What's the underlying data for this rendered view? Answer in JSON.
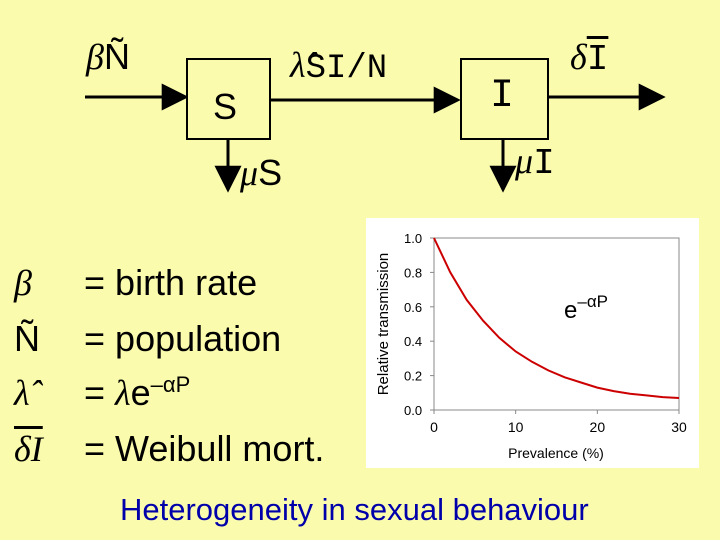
{
  "flow": {
    "birth_symbol": "β",
    "birth_var": "Ñ",
    "box_s": "S",
    "infection_symbol": "λ̂",
    "infection_expr": "SI/N",
    "box_i": "I",
    "disease_death_symbol": "δ",
    "disease_death_var": "I",
    "death_s_symbol": "μ",
    "death_s_var": "S",
    "death_i_symbol": "μ",
    "death_i_var": "I"
  },
  "legend": {
    "rows": [
      {
        "symbol": "β",
        "equals": "=",
        "text": "birth rate"
      },
      {
        "symbol": "Ñ",
        "equals": "=",
        "text": "population"
      },
      {
        "symbol": "λ̂",
        "equals": "=",
        "text_lambda": "λ",
        "text_e": "e",
        "text_sup": "–αP"
      },
      {
        "symbol": "δI",
        "equals": "=",
        "text": "Weibull mort."
      }
    ]
  },
  "chart_data": {
    "type": "line",
    "xlabel": "Prevalence (%)",
    "ylabel": "Relative transmission",
    "xlim": [
      0,
      30
    ],
    "ylim": [
      0,
      1
    ],
    "x_ticks": [
      "0",
      "10",
      "20",
      "30"
    ],
    "y_ticks": [
      "0.0",
      "0.2",
      "0.4",
      "0.6",
      "0.8",
      "1.0"
    ],
    "annotation": {
      "base": "e",
      "sup": "–αP"
    },
    "series": [
      {
        "x": [
          0,
          2,
          4,
          6,
          8,
          10,
          12,
          14,
          16,
          18,
          20,
          22,
          24,
          26,
          28,
          30
        ],
        "y": [
          1.0,
          0.8,
          0.64,
          0.52,
          0.42,
          0.34,
          0.28,
          0.23,
          0.19,
          0.16,
          0.13,
          0.11,
          0.095,
          0.085,
          0.075,
          0.07
        ],
        "color": "#cc0000"
      }
    ]
  },
  "footer": "Heterogeneity in sexual behaviour"
}
